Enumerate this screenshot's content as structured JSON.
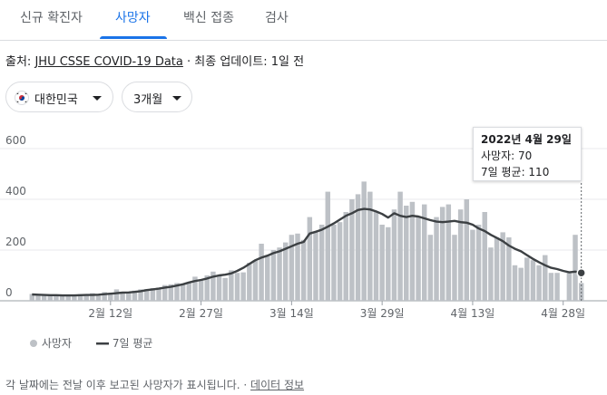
{
  "tabs": [
    {
      "label": "신규 확진자"
    },
    {
      "label": "사망자"
    },
    {
      "label": "백신 접종"
    },
    {
      "label": "검사"
    }
  ],
  "source": {
    "prefix": "출처:",
    "link": "JHU CSSE COVID-19 Data",
    "sep": "·",
    "updated": "최종 업데이트: 1일 전"
  },
  "filters": {
    "country": "대한민국",
    "range": "3개월"
  },
  "tooltip": {
    "date": "2022년 4월 29일",
    "deaths": "사망자: 70",
    "avg": "7일 평균: 110"
  },
  "legend": {
    "bars": "사망자",
    "line": "7일 평균"
  },
  "footer": {
    "text": "각 날짜에는 전날 이후 보고된 사망자가 표시됩니다.",
    "sep": "·",
    "link": "데이터 정보"
  },
  "colors": {
    "bar": "#bdc1c6",
    "line": "#3c4043",
    "accent": "#1a73e8"
  },
  "chart_data": {
    "type": "bar",
    "x_start": "2022-01-30",
    "x_end": "2022-04-29",
    "yticks": [
      "0",
      "200",
      "400",
      "600"
    ],
    "ylim": [
      0,
      600
    ],
    "xticks": [
      {
        "label": "2월 12일",
        "date": "2022-02-12"
      },
      {
        "label": "2월 27일",
        "date": "2022-02-27"
      },
      {
        "label": "3월 14일",
        "date": "2022-03-14"
      },
      {
        "label": "3월 29일",
        "date": "2022-03-29"
      },
      {
        "label": "4월 13일",
        "date": "2022-04-13"
      },
      {
        "label": "4월 28일",
        "date": "2022-04-28"
      }
    ],
    "series": [
      {
        "name": "사망자",
        "type": "bar",
        "values": [
          27,
          26,
          24,
          20,
          22,
          19,
          21,
          18,
          26,
          25,
          30,
          20,
          34,
          30,
          45,
          28,
          32,
          40,
          45,
          46,
          50,
          52,
          62,
          65,
          70,
          68,
          72,
          95,
          80,
          100,
          115,
          100,
          90,
          120,
          110,
          112,
          150,
          160,
          225,
          180,
          200,
          210,
          230,
          260,
          265,
          240,
          330,
          270,
          300,
          430,
          300,
          310,
          350,
          400,
          420,
          470,
          430,
          350,
          300,
          290,
          360,
          430,
          375,
          390,
          330,
          380,
          260,
          330,
          370,
          380,
          260,
          360,
          400,
          280,
          300,
          350,
          210,
          250,
          270,
          250,
          140,
          130,
          170,
          160,
          140,
          180,
          110,
          110,
          0,
          110,
          260,
          70
        ]
      },
      {
        "name": "7일 평균",
        "type": "line",
        "values": [
          25,
          24,
          23,
          22,
          22,
          21,
          21,
          21,
          22,
          23,
          23,
          24,
          26,
          28,
          30,
          32,
          33,
          35,
          38,
          42,
          45,
          48,
          52,
          55,
          60,
          65,
          72,
          78,
          82,
          88,
          95,
          100,
          103,
          108,
          118,
          130,
          145,
          160,
          170,
          178,
          188,
          195,
          205,
          215,
          225,
          232,
          265,
          272,
          280,
          292,
          305,
          320,
          335,
          345,
          358,
          362,
          360,
          352,
          342,
          328,
          345,
          335,
          330,
          335,
          332,
          325,
          318,
          312,
          310,
          312,
          315,
          310,
          308,
          300,
          285,
          275,
          260,
          248,
          235,
          218,
          205,
          195,
          180,
          165,
          152,
          140,
          130,
          125,
          118,
          112,
          115,
          110
        ]
      }
    ]
  }
}
